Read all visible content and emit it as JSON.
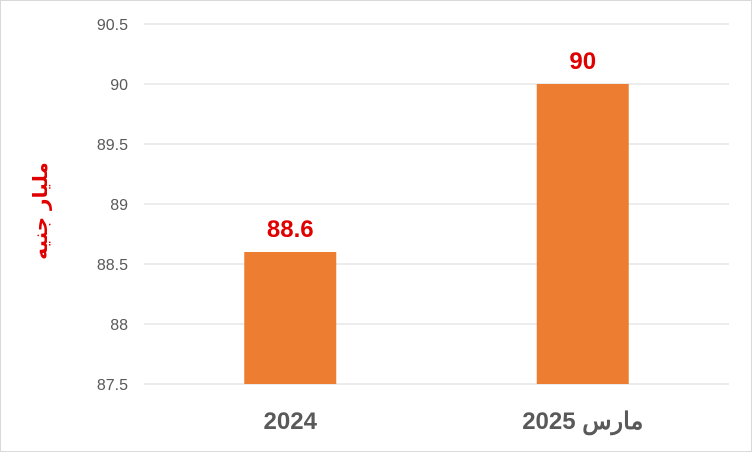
{
  "chart_data": {
    "type": "bar",
    "title": "",
    "xlabel": "",
    "ylabel": "مليار جنيه",
    "categories": [
      "2024",
      "مارس 2025"
    ],
    "values": [
      88.6,
      90
    ],
    "data_labels": [
      "88.6",
      "90"
    ],
    "ylim": [
      87.5,
      90.5
    ],
    "yticks": [
      "87.5",
      "88",
      "88.5",
      "89",
      "89.5",
      "90",
      "90.5"
    ],
    "grid": true,
    "legend": "none",
    "colors": {
      "bar": "#ed7d31",
      "data_label": "#e00000",
      "ylabel": "#e00000",
      "grid": "#d9d9d9",
      "text": "#595959"
    }
  }
}
